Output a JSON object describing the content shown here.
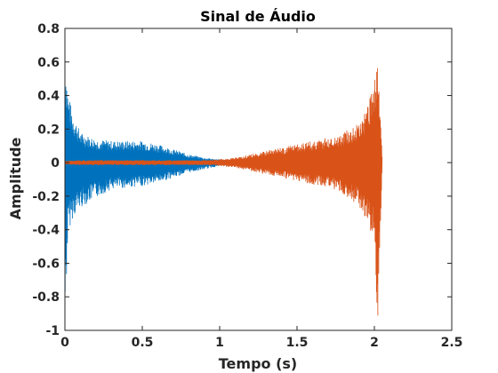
{
  "chart_data": {
    "type": "line",
    "title": "Sinal de Áudio",
    "xlabel": "Tempo (s)",
    "ylabel": "Amplitude",
    "xlim": [
      0,
      2.5
    ],
    "ylim": [
      -1,
      0.8
    ],
    "xticks": [
      0,
      0.5,
      1,
      1.5,
      2,
      2.5
    ],
    "xtick_labels": [
      "0",
      "0.5",
      "1",
      "1.5",
      "2",
      "2.5"
    ],
    "yticks": [
      -1,
      -0.8,
      -0.6,
      -0.4,
      -0.2,
      0,
      0.2,
      0.4,
      0.6,
      0.8
    ],
    "ytick_labels": [
      "-1",
      "-0.8",
      "-0.6",
      "-0.4",
      "-0.2",
      "0",
      "0.2",
      "0.4",
      "0.6",
      "0.8"
    ],
    "grid": false,
    "legend": "none",
    "series": [
      {
        "color": "#0072BD",
        "envelope_x": [
          0,
          0.02,
          0.05,
          0.1,
          0.2,
          0.3,
          0.4,
          0.5,
          0.6,
          0.7,
          0.8,
          0.9,
          1.0,
          1.1,
          1.2,
          1.3,
          1.4,
          1.5,
          1.6,
          1.7,
          1.8,
          1.9,
          2.0,
          2.05
        ],
        "envelope_upper": [
          0.68,
          0.42,
          0.3,
          0.18,
          0.14,
          0.13,
          0.13,
          0.13,
          0.11,
          0.08,
          0.05,
          0.03,
          0.02,
          0.015,
          0.015,
          0.015,
          0.015,
          0.015,
          0.015,
          0.015,
          0.015,
          0.015,
          0.015,
          0.01
        ],
        "envelope_lower": [
          -1.0,
          -0.42,
          -0.33,
          -0.27,
          -0.21,
          -0.16,
          -0.15,
          -0.14,
          -0.12,
          -0.09,
          -0.06,
          -0.04,
          -0.02,
          -0.015,
          -0.015,
          -0.015,
          -0.015,
          -0.015,
          -0.015,
          -0.015,
          -0.015,
          -0.015,
          -0.015,
          -0.01
        ]
      },
      {
        "color": "#D95319",
        "envelope_x": [
          0,
          0.1,
          0.2,
          0.3,
          0.4,
          0.5,
          0.6,
          0.7,
          0.8,
          0.9,
          1.0,
          1.1,
          1.2,
          1.3,
          1.4,
          1.5,
          1.6,
          1.7,
          1.8,
          1.9,
          1.95,
          2.0,
          2.02,
          2.05
        ],
        "envelope_upper": [
          0.01,
          0.015,
          0.015,
          0.015,
          0.015,
          0.015,
          0.015,
          0.015,
          0.015,
          0.015,
          0.02,
          0.03,
          0.05,
          0.07,
          0.09,
          0.11,
          0.13,
          0.15,
          0.18,
          0.24,
          0.32,
          0.5,
          0.67,
          0.05
        ],
        "envelope_lower": [
          -0.01,
          -0.015,
          -0.015,
          -0.015,
          -0.015,
          -0.015,
          -0.015,
          -0.015,
          -0.015,
          -0.015,
          -0.02,
          -0.03,
          -0.05,
          -0.07,
          -0.09,
          -0.11,
          -0.13,
          -0.15,
          -0.19,
          -0.26,
          -0.34,
          -0.5,
          -1.0,
          -0.05
        ]
      }
    ]
  }
}
